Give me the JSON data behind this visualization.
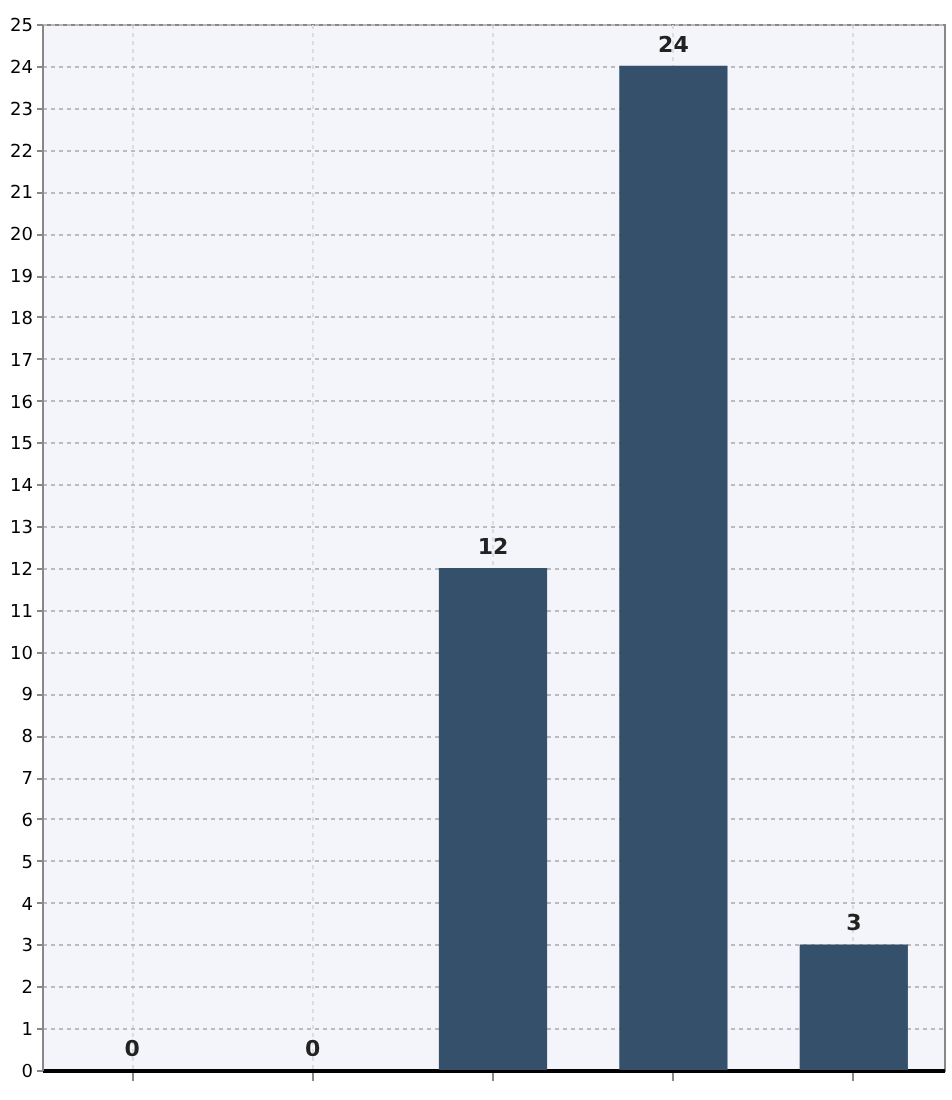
{
  "chart_data": {
    "type": "bar",
    "categories": [
      null,
      null,
      null,
      null,
      null
    ],
    "values": [
      0,
      0,
      12,
      24,
      3
    ],
    "color": "#34506a",
    "ylim": [
      0,
      25
    ],
    "yticks": [
      0,
      1,
      2,
      3,
      4,
      5,
      6,
      7,
      8,
      9,
      10,
      11,
      12,
      13,
      14,
      15,
      16,
      17,
      18,
      19,
      20,
      21,
      22,
      23,
      24,
      25
    ],
    "grid": true,
    "data_labels": true
  }
}
